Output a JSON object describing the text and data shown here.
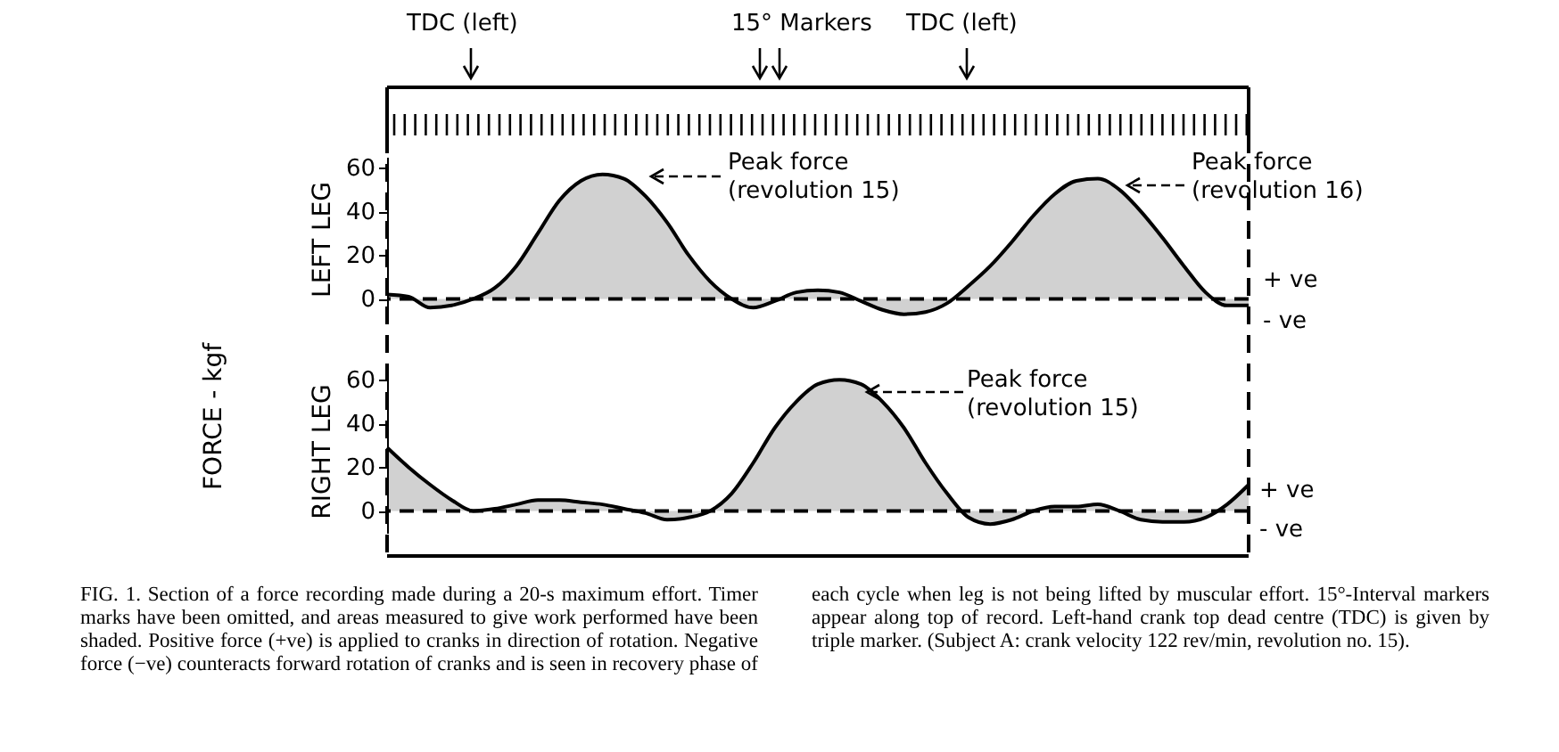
{
  "chart_data": [
    {
      "type": "area",
      "ylabel": "LEFT LEG",
      "categories": [
        null,
        null,
        null,
        null,
        null,
        null,
        null,
        null,
        null,
        null,
        null,
        null,
        null,
        null,
        null,
        null,
        null,
        null,
        null,
        null,
        null,
        null,
        null,
        null,
        null,
        null,
        null,
        null,
        null,
        null,
        null,
        null,
        null,
        null,
        null,
        null,
        null,
        null,
        null,
        null,
        null
      ],
      "series": [
        {
          "color": "#000000",
          "values": [
            2,
            1,
            -4,
            -3,
            0,
            5,
            15,
            30,
            45,
            54,
            57,
            55,
            47,
            35,
            20,
            8,
            0,
            -4,
            -1,
            3,
            4,
            3,
            -1,
            -5,
            -7,
            -6,
            -2,
            6,
            15,
            26,
            38,
            48,
            54,
            55,
            50,
            40,
            28,
            15,
            3,
            -3,
            -3
          ]
        }
      ],
      "ylim": [
        -10,
        65
      ],
      "yticks": [
        0,
        20,
        40,
        60
      ],
      "grid": false,
      "tick_labels": "y",
      "ref_lines": [
        {
          "axis": "y",
          "value": 0,
          "line_style": "dashed"
        }
      ],
      "annotations": [
        "TDC (left)",
        "15° Markers",
        "TDC (left)",
        "Peak force (revolution 15)",
        "Peak force (revolution 16)",
        "+ ve",
        "- ve",
        "FORCE - kgf"
      ]
    },
    {
      "type": "area",
      "ylabel": "RIGHT LEG",
      "categories": [
        null,
        null,
        null,
        null,
        null,
        null,
        null,
        null,
        null,
        null,
        null,
        null,
        null,
        null,
        null,
        null,
        null,
        null,
        null,
        null,
        null,
        null,
        null,
        null,
        null,
        null,
        null,
        null,
        null,
        null,
        null,
        null,
        null,
        null,
        null,
        null,
        null,
        null,
        null,
        null,
        null
      ],
      "series": [
        {
          "color": "#000000",
          "values": [
            29,
            20,
            12,
            5,
            0,
            1,
            3,
            5,
            5,
            4,
            3,
            1,
            -1,
            -4,
            -3,
            0,
            8,
            22,
            38,
            50,
            58,
            60,
            58,
            50,
            38,
            22,
            8,
            -3,
            -6,
            -4,
            0,
            2,
            2,
            3,
            0,
            -4,
            -5,
            -5,
            -3,
            3,
            12
          ]
        }
      ],
      "ylim": [
        -10,
        65
      ],
      "yticks": [
        0,
        20,
        40,
        60
      ],
      "grid": false,
      "tick_labels": "y",
      "ref_lines": [
        {
          "axis": "y",
          "value": 0,
          "line_style": "dashed"
        }
      ],
      "annotations": [
        "Peak force (revolution 15)",
        "+ ve",
        "- ve",
        "FIG. 1. Section of a force recording made during a 20-s maximum effort. Timer marks have been omitted, and areas measured to give work performed have been shaded. Positive force (+ve) is applied to cranks in direction of rotation. Negative force (−ve) counteracts forward rotation of cranks and is seen in recovery phase of each cycle when leg is not being lifted by muscular effort. 15°-Interval markers appear along top of record. Left-hand crank top dead centre (TDC) is given by triple marker. (Subject A: crank velocity 122 rev/min, revolution no. 15)."
      ]
    }
  ]
}
